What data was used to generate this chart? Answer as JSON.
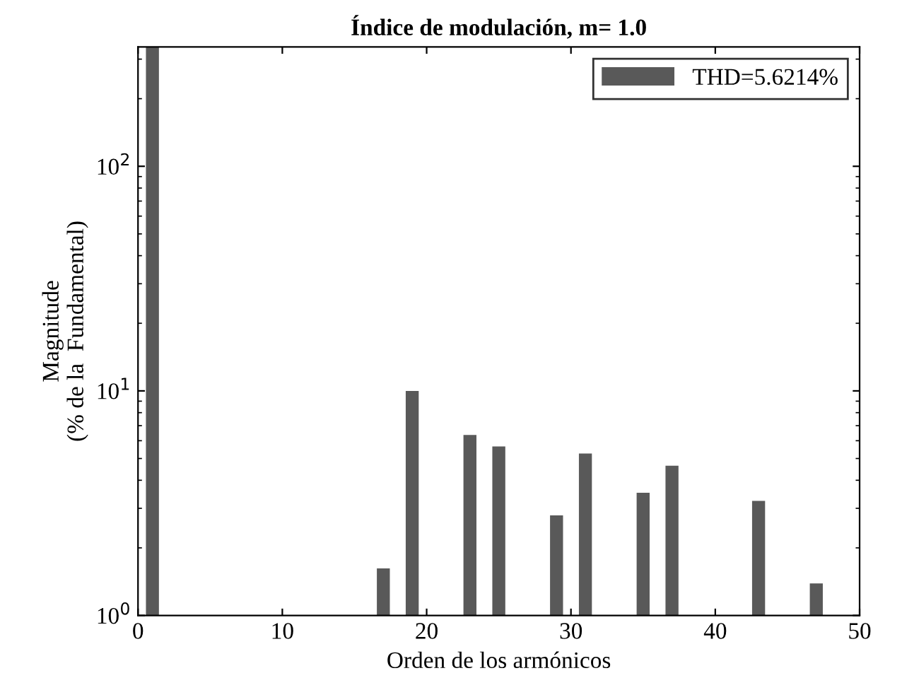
{
  "chart_data": {
    "type": "bar",
    "title": "Índice de modulación, m= 1.0",
    "xlabel": "Orden de los armónicos",
    "ylabel": "Magnitude\n(% de la  Fundamental)",
    "x": [
      1,
      17,
      19,
      23,
      25,
      29,
      31,
      35,
      37,
      43,
      47
    ],
    "series": [
      {
        "name": "THD=5.6214%",
        "color": "#595959",
        "values": [
          340,
          1.62,
          10,
          6.36,
          5.66,
          2.79,
          5.26,
          3.52,
          4.64,
          3.24,
          1.39
        ]
      }
    ],
    "log": "y",
    "xlim": [
      0,
      50
    ],
    "xticks": [
      0,
      10,
      20,
      30,
      40,
      50
    ],
    "ylim": [
      1,
      340
    ],
    "yticks": [
      {
        "value": 1,
        "label": "10$^{0}$"
      },
      {
        "value": 10,
        "label": "10$^{1}$"
      },
      {
        "value": 100,
        "label": "10$^{2}$"
      }
    ],
    "grid": false,
    "legend": "top right"
  }
}
